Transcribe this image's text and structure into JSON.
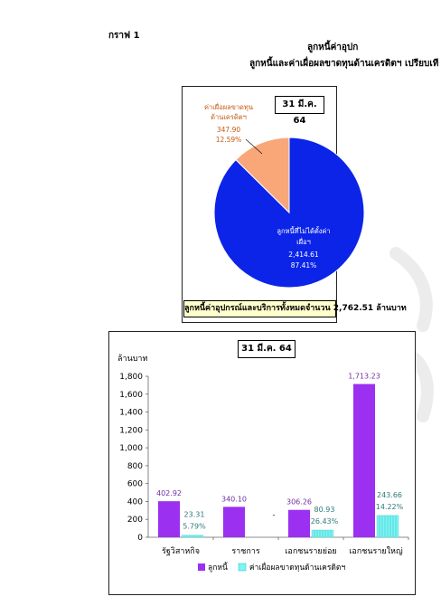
{
  "header": {
    "graph_label": "กราฟ 1",
    "title_line1": "ลูกหนี้ค่าอุปก",
    "title_line2": "ลูกหนี้และค่าเผื่อผลขาดทุนด้านเครดิตฯ เปรียบเที"
  },
  "chart_data": [
    {
      "type": "pie",
      "date_label": "31 มี.ค. 64",
      "slices": [
        {
          "name": "ลูกหนี้ที่ไม่ได้ตั้งค่าเผื่อฯ",
          "name_line1": "ลูกหนี้ที่ไม่ได้ตั้งค่า",
          "name_line2": "เผื่อฯ",
          "value": 2414.61,
          "value_label": "2,414.61",
          "percent_label": "87.41%",
          "color": "#0b24e8"
        },
        {
          "name": "ค่าเผื่อผลขาดทุนด้านเครดิตฯ",
          "name_line1": "ค่าเผื่อผลขาดทุน",
          "name_line2": "ด้านเครดิตฯ",
          "value": 347.9,
          "value_label": "347.90",
          "percent_label": "12.59%",
          "color": "#f9a679"
        }
      ],
      "total_label": "ลูกหนี้ค่าอุปกรณ์และบริการทั้งหมดจำนวน 2,762.51 ล้านบาท"
    },
    {
      "type": "bar",
      "date_label": "31 มี.ค. 64",
      "ylabel": "ล้านบาท",
      "ylim": [
        0,
        1800
      ],
      "yticks": [
        "0",
        "200",
        "400",
        "600",
        "800",
        "1,000",
        "1,200",
        "1,400",
        "1,600",
        "1,800"
      ],
      "categories": [
        "รัฐวิสาหกิจ",
        "ราชการ",
        "เอกชนรายย่อย",
        "เอกชนรายใหญ่"
      ],
      "series": [
        {
          "name": "ลูกหนี้",
          "color": "#9b30f0",
          "values": [
            402.92,
            340.1,
            306.26,
            1713.23
          ],
          "labels": [
            "402.92",
            "340.10",
            "306.26",
            "1,713.23"
          ]
        },
        {
          "name": "ค่าเผื่อผลขาดทุนด้านเครดิตฯ",
          "color": "#7ff3f3",
          "values": [
            23.31,
            0,
            80.93,
            243.66
          ],
          "labels": [
            "23.31",
            "-",
            "80.93",
            "243.66"
          ],
          "percent_labels": [
            "5.79%",
            "",
            "26.43%",
            "14.22%"
          ]
        }
      ],
      "grid": false,
      "legend": "bottom"
    }
  ]
}
